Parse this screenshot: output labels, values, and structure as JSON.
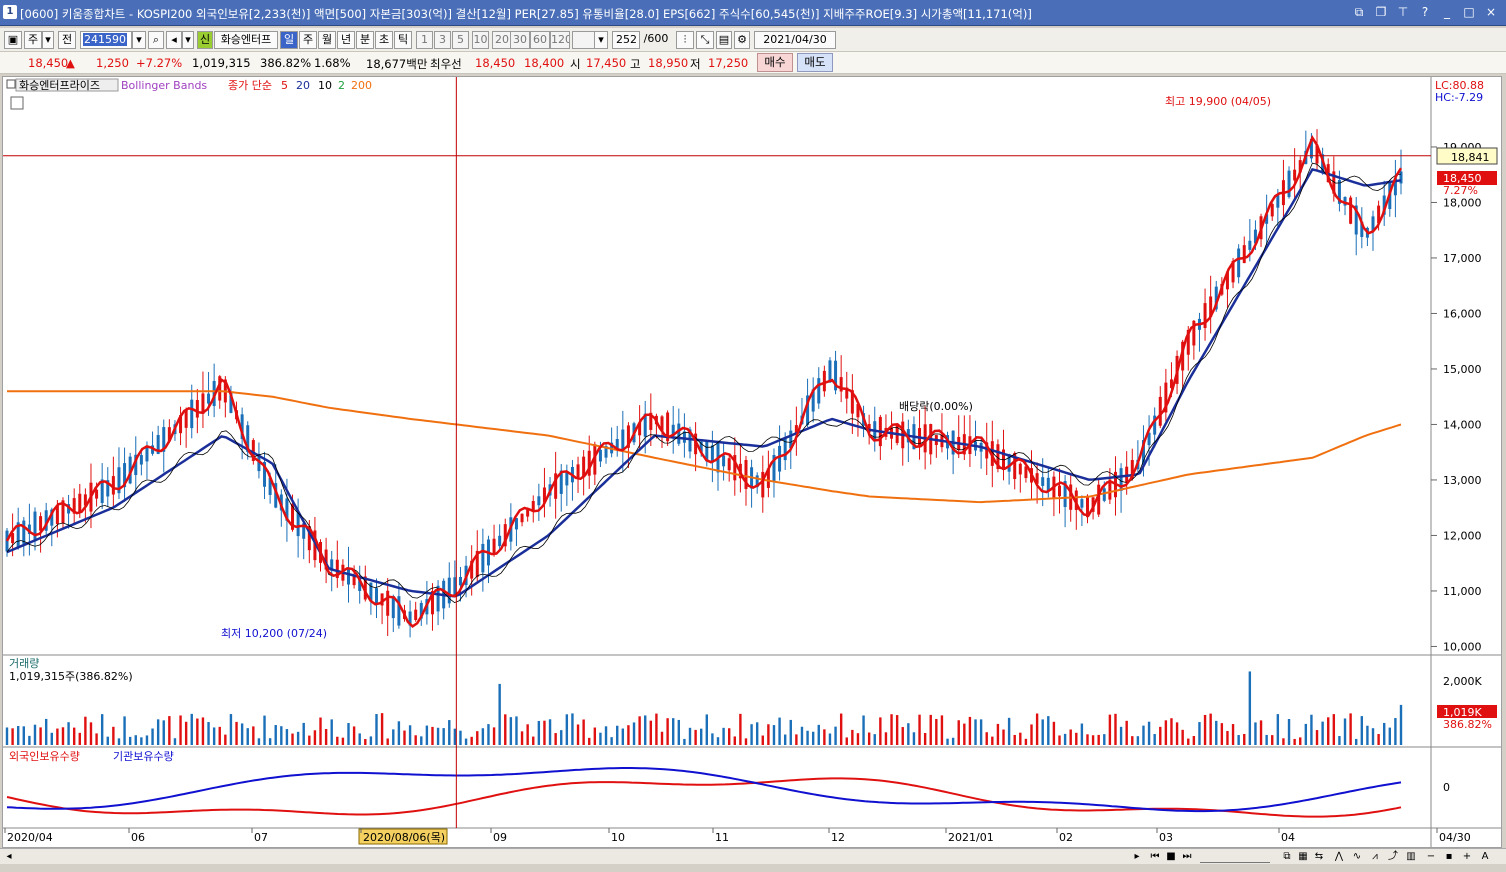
{
  "title_bar": {
    "num": "1",
    "text": "[0600] 키움종합차트 - KOSPI200 외국인보유[2,233(천)] 액면[500] 자본금[303(억)] 결산[12월] PER[27.85] 유통비율[28.0] EPS[662] 주식수[60,545(천)] 지배주주ROE[9.3] 시가총액[11,171(억)]",
    "icons": [
      "restore-icon",
      "window-icon",
      "pin-icon",
      "help-icon",
      "minimize-icon",
      "maximize-icon",
      "close-icon"
    ]
  },
  "toolbar": {
    "period": "주",
    "prev": "전",
    "code": "241590",
    "new_badge": "신",
    "stock_name": "화승엔터프",
    "tabs": [
      "일",
      "주",
      "월",
      "년",
      "분",
      "초",
      "틱"
    ],
    "active_tab": "일",
    "intervals": [
      "1",
      "3",
      "5",
      "10",
      "20",
      "30",
      "60",
      "120"
    ],
    "count": "252",
    "max": "/600",
    "date": "2021/04/30"
  },
  "info_bar": {
    "price": "18,450",
    "arrow": "▲",
    "change": "1,250",
    "change_pct": "+7.27%",
    "volume": "1,019,315",
    "vol_ratio": "386.82%",
    "turnover": "1.68%",
    "amount": "18,677백만",
    "best_label": "최우선",
    "ask": "18,450",
    "bid": "18,400",
    "open_label": "시",
    "open": "17,450",
    "high_label": "고",
    "high": "18,950",
    "low_label": "저",
    "low": "17,250",
    "buy": "매수",
    "sell": "매도"
  },
  "price_panel": {
    "legend_name": "화승엔터프라이즈",
    "legend_bb": "Bollinger Bands",
    "legend_ma": "종가 단순",
    "ma_periods": [
      "5",
      "20",
      "10",
      "2",
      "200"
    ],
    "lc": "LC:80.88",
    "hc": "HC:-7.29",
    "max_note": "최고 19,900 (04/05)",
    "min_note": "최저 10,200 (07/24)",
    "div_note": "배당락(0.00%)",
    "cross_price": "18,841",
    "last_price": "18,450",
    "last_pct": "7.27%",
    "y_ticks": [
      "19,000",
      "18,000",
      "17,000",
      "16,000",
      "15,000",
      "14,000",
      "13,000",
      "12,000",
      "11,000",
      "10,000"
    ]
  },
  "volume_panel": {
    "title": "거래량",
    "value": "1,019,315주(386.82%)",
    "y_tick": "2,000K",
    "last": "1,019K",
    "last_pct": "386.82%"
  },
  "investor_panel": {
    "foreign": "외국인보유수량",
    "inst": "기관보유수량",
    "y_tick": "0"
  },
  "x_axis": {
    "labels": [
      "2020/04",
      "06",
      "07",
      "2020/08/06(목)",
      "09",
      "10",
      "11",
      "12",
      "2021/01",
      "02",
      "03",
      "04",
      "04/30"
    ]
  },
  "colors": {
    "up": "#e01010",
    "down": "#1a6fb8",
    "ma5": "#e01010",
    "ma20": "#1a2f9a",
    "ma200": "#f07010",
    "crosshair": "#c00000"
  },
  "chart_data": {
    "type": "line",
    "title": "",
    "xlabel": "",
    "ylabel": "",
    "ylim": [
      9900,
      19900
    ],
    "x": [
      "2020-04-01",
      "2020-05-01",
      "2020-06-01",
      "2020-06-15",
      "2020-07-01",
      "2020-07-24",
      "2020-08-06",
      "2020-09-01",
      "2020-10-01",
      "2020-11-01",
      "2020-11-20",
      "2020-12-01",
      "2021-01-01",
      "2021-02-01",
      "2021-02-15",
      "2021-03-01",
      "2021-04-05",
      "2021-04-20",
      "2021-04-30"
    ],
    "series": [
      {
        "name": "5",
        "values": [
          11900,
          12900,
          14700,
          12800,
          11500,
          10500,
          11100,
          12800,
          14100,
          12900,
          15000,
          13900,
          13600,
          12500,
          13300,
          15500,
          19000,
          17400,
          18450
        ]
      },
      {
        "name": "20",
        "values": [
          11700,
          12500,
          13800,
          13300,
          11400,
          11000,
          10900,
          12000,
          13800,
          13600,
          14100,
          13900,
          13600,
          13000,
          13100,
          14800,
          18600,
          18300,
          18400
        ]
      },
      {
        "name": "200",
        "values": [
          14600,
          14600,
          14600,
          14500,
          14300,
          14100,
          14000,
          13800,
          13400,
          13000,
          12800,
          12700,
          12600,
          12700,
          12900,
          13100,
          13400,
          13800,
          14000
        ]
      }
    ]
  }
}
